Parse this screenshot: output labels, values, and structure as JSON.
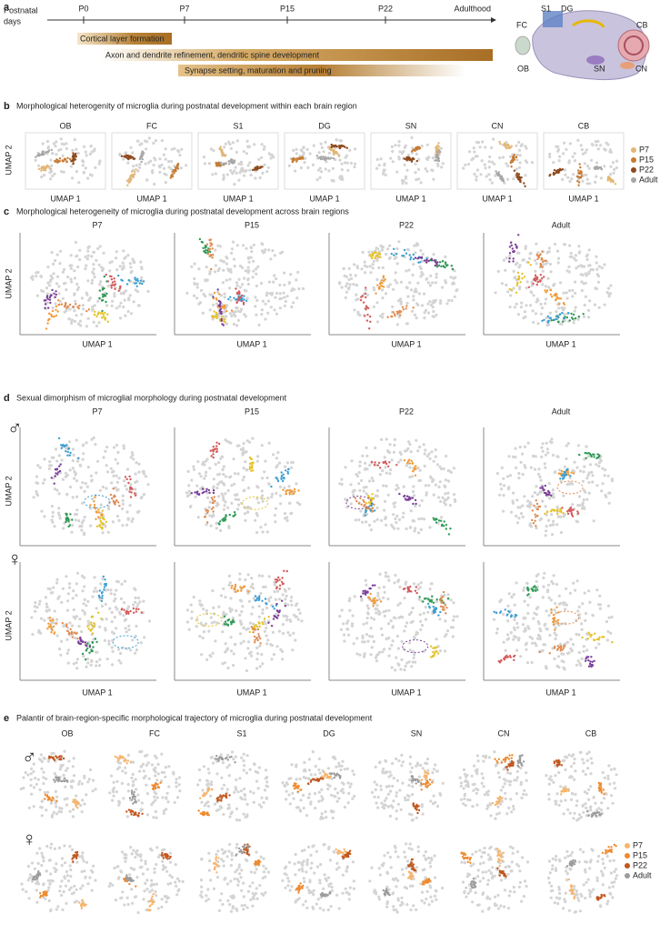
{
  "panel_a": {
    "label": "a",
    "timeline_title": [
      "Postnatal",
      "days"
    ],
    "timepoints": [
      "P0",
      "P7",
      "P15",
      "P22",
      "Adulthood"
    ],
    "processes": [
      "Cortical layer formation",
      "Axon and dendrite refinement, dendritic spine development",
      "Synapse setting, maturation and pruning"
    ]
  },
  "regions": [
    {
      "name": "OB",
      "color": "#2f9a55"
    },
    {
      "name": "FC",
      "color": "#f29b38"
    },
    {
      "name": "S1",
      "color": "#3a9fd3"
    },
    {
      "name": "DG",
      "color": "#e6c229"
    },
    {
      "name": "SN",
      "color": "#7b3f9a"
    },
    {
      "name": "CN",
      "color": "#e08a50"
    },
    {
      "name": "CB",
      "color": "#d45a5a"
    }
  ],
  "stages": [
    {
      "name": "P7",
      "color": "#e2b675"
    },
    {
      "name": "P15",
      "color": "#c67c33"
    },
    {
      "name": "P22",
      "color": "#8e4a1d"
    },
    {
      "name": "Adult",
      "color": "#a7a7a7"
    }
  ],
  "palantir_stages": [
    {
      "name": "P7",
      "color": "#f6b56e"
    },
    {
      "name": "P15",
      "color": "#ee8a2f"
    },
    {
      "name": "P22",
      "color": "#c2561d"
    },
    {
      "name": "Adult",
      "color": "#9c9c9c"
    }
  ],
  "axis_labels": {
    "x": "UMAP 1",
    "y": "UMAP 2"
  },
  "panel_b": {
    "label": "b",
    "title": "Morphological heterogenity of microglia during postnatal development within each brain region"
  },
  "panel_c": {
    "label": "c",
    "title": "Morphological heterogeneity of microglia during postnatal development across brain regions"
  },
  "panel_d": {
    "label": "d",
    "title": "Sexual dimorphism of microglial morphology during postnatal development",
    "sexes": [
      "♂",
      "♀"
    ]
  },
  "panel_e": {
    "label": "e",
    "title": "Palantir of brain-region-specific morphological trajectory of microglia during postnatal development",
    "sexes": [
      "♂",
      "♀"
    ]
  }
}
